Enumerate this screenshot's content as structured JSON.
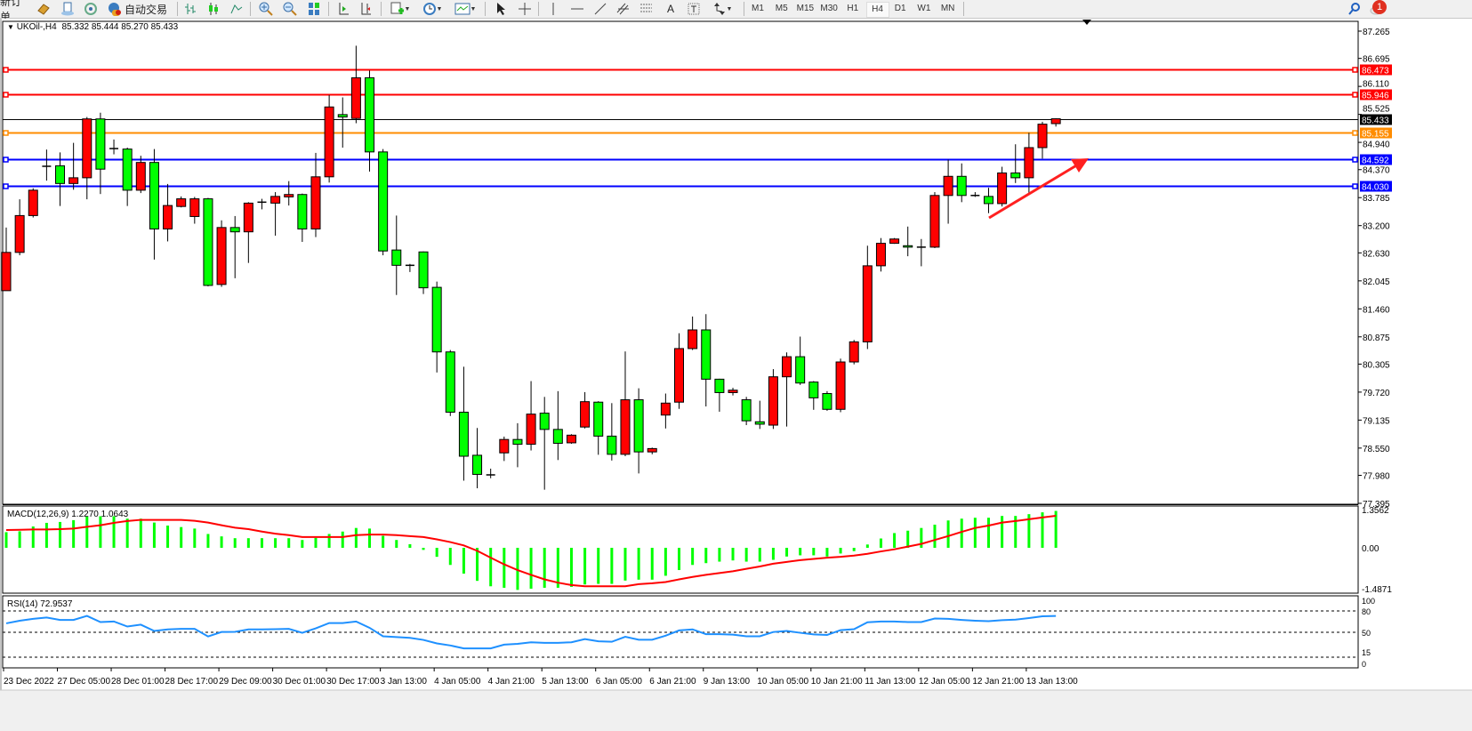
{
  "toolbar": {
    "new_order_label": "新订单",
    "auto_trading_label": "自动交易",
    "icons": [
      "book-icon",
      "market-watch-icon",
      "signals-icon",
      "robot-icon",
      "bar-chart-icon",
      "candlestick-icon",
      "line-chart-icon",
      "zoom-in-icon",
      "zoom-out-icon",
      "tile-windows-icon",
      "auto-scroll-icon",
      "chart-shift-icon",
      "new-chart-icon",
      "clock-icon",
      "template-icon",
      "cursor-icon",
      "crosshair-icon",
      "vertical-line-icon",
      "horizontal-line-icon",
      "trendline-icon",
      "fibonacci-icon",
      "channel-icon",
      "text-icon",
      "text-label-icon",
      "arrows-icon",
      "search-icon",
      "notification-icon"
    ],
    "timeframes": [
      "M1",
      "M5",
      "M15",
      "M30",
      "H1",
      "H4",
      "D1",
      "W1",
      "MN"
    ],
    "selected_timeframe": "H4",
    "notification_count": "1"
  },
  "header": {
    "symbol": "UKOil-,H4",
    "ohlc": "85.332 85.444 85.270 85.433"
  },
  "colors": {
    "up_candle": "#ff0000",
    "down_candle": "#00ff00",
    "resistance": "#ff0000",
    "bid": "#000000",
    "pivot": "#ff8c00",
    "support": "#0000ff",
    "macd_hist": "#00ff00",
    "macd_signal": "#ff0000",
    "rsi": "#1e90ff",
    "arrow": "#ff2020"
  },
  "chart_data": [
    {
      "type": "candlestick",
      "symbol": "UKOil-",
      "timeframe": "H4",
      "ylim": [
        77.395,
        87.265
      ],
      "y_ticks": [
        "87.265",
        "86.695",
        "86.110",
        "85.525",
        "84.940",
        "84.370",
        "83.785",
        "83.200",
        "82.630",
        "82.045",
        "81.460",
        "80.875",
        "80.305",
        "79.720",
        "79.135",
        "78.550",
        "77.980",
        "77.395"
      ],
      "x_ticks": [
        "23 Dec 2022",
        "27 Dec 05:00",
        "28 Dec 01:00",
        "28 Dec 17:00",
        "29 Dec 09:00",
        "30 Dec 01:00",
        "30 Dec 17:00",
        "3 Jan 13:00",
        "4 Jan 05:00",
        "4 Jan 21:00",
        "5 Jan 13:00",
        "6 Jan 05:00",
        "6 Jan 21:00",
        "9 Jan 13:00",
        "10 Jan 05:00",
        "10 Jan 21:00",
        "11 Jan 13:00",
        "12 Jan 05:00",
        "12 Jan 21:00",
        "13 Jan 13:00"
      ],
      "x_tick_every": 4,
      "ohlc_fields": [
        "open",
        "high",
        "low",
        "close"
      ],
      "candles": [
        [
          81.84,
          83.16,
          81.84,
          82.64
        ],
        [
          82.64,
          83.75,
          82.58,
          83.41
        ],
        [
          83.41,
          83.98,
          83.37,
          83.94
        ],
        [
          84.44,
          84.79,
          84.14,
          84.44
        ],
        [
          84.45,
          84.73,
          83.61,
          84.08
        ],
        [
          84.08,
          84.93,
          83.95,
          84.2
        ],
        [
          84.2,
          85.47,
          83.75,
          85.43
        ],
        [
          85.43,
          85.56,
          83.86,
          84.38
        ],
        [
          84.81,
          85.0,
          84.69,
          84.81
        ],
        [
          84.8,
          84.83,
          83.61,
          83.94
        ],
        [
          83.94,
          84.66,
          83.88,
          84.52
        ],
        [
          84.52,
          84.8,
          82.49,
          83.13
        ],
        [
          83.13,
          84.07,
          82.87,
          83.62
        ],
        [
          83.6,
          83.81,
          83.58,
          83.76
        ],
        [
          83.39,
          83.8,
          83.24,
          83.76
        ],
        [
          83.76,
          83.78,
          81.93,
          81.95
        ],
        [
          81.97,
          83.31,
          81.92,
          83.16
        ],
        [
          83.16,
          83.4,
          82.1,
          83.07
        ],
        [
          83.07,
          83.69,
          82.42,
          83.67
        ],
        [
          83.69,
          83.76,
          83.54,
          83.69
        ],
        [
          83.67,
          83.9,
          82.99,
          83.81
        ],
        [
          83.8,
          84.13,
          83.62,
          83.85
        ],
        [
          83.85,
          83.87,
          82.86,
          83.13
        ],
        [
          83.13,
          84.72,
          82.96,
          84.22
        ],
        [
          84.22,
          85.93,
          84.1,
          85.68
        ],
        [
          85.52,
          85.88,
          84.83,
          85.47
        ],
        [
          85.44,
          86.96,
          85.34,
          86.29
        ],
        [
          86.29,
          86.44,
          84.33,
          84.74
        ],
        [
          84.74,
          84.8,
          82.58,
          82.67
        ],
        [
          82.69,
          83.41,
          81.75,
          82.37
        ],
        [
          82.37,
          82.4,
          82.23,
          82.37
        ],
        [
          82.65,
          82.66,
          81.77,
          81.9
        ],
        [
          81.91,
          82.03,
          80.13,
          80.56
        ],
        [
          80.56,
          80.6,
          79.22,
          79.3
        ],
        [
          79.3,
          80.25,
          77.87,
          78.38
        ],
        [
          78.4,
          78.97,
          77.71,
          78.0
        ],
        [
          77.99,
          78.12,
          77.92,
          77.99
        ],
        [
          78.45,
          78.79,
          78.28,
          78.73
        ],
        [
          78.73,
          79.07,
          78.15,
          78.63
        ],
        [
          78.63,
          79.95,
          78.5,
          79.26
        ],
        [
          79.28,
          79.62,
          77.68,
          78.94
        ],
        [
          78.94,
          79.74,
          78.3,
          78.65
        ],
        [
          78.66,
          78.84,
          78.64,
          78.82
        ],
        [
          78.99,
          79.72,
          78.96,
          79.52
        ],
        [
          79.51,
          79.53,
          78.41,
          78.8
        ],
        [
          78.8,
          79.49,
          78.29,
          78.42
        ],
        [
          78.42,
          80.57,
          78.38,
          79.56
        ],
        [
          79.56,
          79.8,
          78.02,
          78.47
        ],
        [
          78.47,
          78.56,
          78.42,
          78.54
        ],
        [
          79.24,
          79.69,
          78.96,
          79.49
        ],
        [
          79.51,
          80.95,
          79.37,
          80.63
        ],
        [
          80.63,
          81.3,
          80.6,
          81.02
        ],
        [
          81.02,
          81.35,
          79.42,
          79.99
        ],
        [
          79.99,
          80.0,
          79.31,
          79.71
        ],
        [
          79.71,
          79.81,
          79.65,
          79.76
        ],
        [
          79.56,
          79.62,
          79.03,
          79.12
        ],
        [
          79.1,
          79.54,
          78.95,
          79.05
        ],
        [
          79.03,
          80.2,
          78.95,
          80.04
        ],
        [
          80.04,
          80.55,
          79.0,
          80.46
        ],
        [
          80.46,
          80.88,
          79.87,
          79.91
        ],
        [
          79.93,
          79.95,
          79.35,
          79.6
        ],
        [
          79.69,
          79.74,
          79.33,
          79.36
        ],
        [
          79.36,
          80.42,
          79.3,
          80.35
        ],
        [
          80.35,
          80.81,
          80.3,
          80.77
        ],
        [
          80.77,
          82.78,
          80.62,
          82.36
        ],
        [
          82.36,
          82.94,
          82.24,
          82.83
        ],
        [
          82.83,
          82.94,
          82.82,
          82.92
        ],
        [
          82.78,
          83.18,
          82.56,
          82.75
        ],
        [
          82.75,
          82.92,
          82.35,
          82.75
        ],
        [
          82.75,
          83.9,
          82.73,
          83.83
        ],
        [
          83.83,
          84.58,
          83.24,
          84.23
        ],
        [
          84.23,
          84.5,
          83.69,
          83.83
        ],
        [
          83.83,
          83.9,
          83.8,
          83.83
        ],
        [
          83.81,
          83.99,
          83.46,
          83.66
        ],
        [
          83.66,
          84.43,
          83.6,
          84.3
        ],
        [
          84.3,
          84.9,
          84.09,
          84.2
        ],
        [
          84.2,
          85.14,
          83.88,
          84.83
        ],
        [
          84.83,
          85.37,
          84.6,
          85.32
        ],
        [
          85.332,
          85.444,
          85.27,
          85.433
        ]
      ],
      "horizontal_lines": [
        {
          "price": "86.473",
          "role": "resistance"
        },
        {
          "price": "85.946",
          "role": "resistance"
        },
        {
          "price": "85.433",
          "role": "bid"
        },
        {
          "price": "85.155",
          "role": "pivot"
        },
        {
          "price": "84.592",
          "role": "support"
        },
        {
          "price": "84.030",
          "role": "support"
        }
      ],
      "grid": false
    },
    {
      "type": "bar",
      "title": "MACD(12,26,9) 1.2270 1.0643",
      "ylim": [
        -1.4871,
        1.3562
      ],
      "y_ticks": [
        "1.3562",
        "0.00",
        "-1.4871"
      ],
      "histogram": [
        0.52,
        0.55,
        0.71,
        0.83,
        0.86,
        0.92,
        1.05,
        1.05,
        1.05,
        0.97,
        0.97,
        0.84,
        0.74,
        0.69,
        0.64,
        0.46,
        0.38,
        0.32,
        0.32,
        0.32,
        0.32,
        0.32,
        0.26,
        0.33,
        0.46,
        0.54,
        0.66,
        0.64,
        0.4,
        0.26,
        0.12,
        -0.07,
        -0.3,
        -0.57,
        -0.86,
        -1.1,
        -1.28,
        -1.33,
        -1.4,
        -1.36,
        -1.33,
        -1.33,
        -1.3,
        -1.22,
        -1.2,
        -1.2,
        -1.09,
        -1.06,
        -1.06,
        -0.93,
        -0.74,
        -0.57,
        -0.51,
        -0.46,
        -0.42,
        -0.46,
        -0.46,
        -0.4,
        -0.29,
        -0.25,
        -0.25,
        -0.29,
        -0.19,
        -0.11,
        0.11,
        0.31,
        0.49,
        0.57,
        0.66,
        0.77,
        0.91,
        0.97,
        1.0,
        1.0,
        1.06,
        1.06,
        1.12,
        1.18,
        1.227
      ],
      "signal": [
        0.59,
        0.6,
        0.61,
        0.61,
        0.62,
        0.64,
        0.7,
        0.75,
        0.83,
        0.89,
        0.93,
        0.93,
        0.93,
        0.93,
        0.9,
        0.84,
        0.75,
        0.67,
        0.62,
        0.54,
        0.47,
        0.42,
        0.36,
        0.36,
        0.36,
        0.36,
        0.42,
        0.44,
        0.44,
        0.42,
        0.39,
        0.36,
        0.28,
        0.19,
        0.08,
        -0.1,
        -0.33,
        -0.55,
        -0.74,
        -0.9,
        -1.05,
        -1.16,
        -1.24,
        -1.28,
        -1.28,
        -1.28,
        -1.28,
        -1.21,
        -1.18,
        -1.14,
        -1.05,
        -0.97,
        -0.9,
        -0.84,
        -0.78,
        -0.7,
        -0.62,
        -0.53,
        -0.47,
        -0.41,
        -0.37,
        -0.33,
        -0.3,
        -0.26,
        -0.2,
        -0.12,
        -0.05,
        0.04,
        0.13,
        0.26,
        0.39,
        0.53,
        0.66,
        0.74,
        0.84,
        0.89,
        0.95,
        1.01,
        1.0643
      ]
    },
    {
      "type": "line",
      "title": "RSI(14) 72.9537",
      "ylim": [
        0,
        100
      ],
      "y_ticks": [
        "100",
        "80",
        "50",
        "15",
        "0"
      ],
      "levels": [
        80,
        50,
        15
      ],
      "values": [
        62.6,
        66.3,
        68.9,
        70.7,
        67.4,
        67.4,
        73.0,
        64.4,
        65.2,
        58.1,
        60.7,
        51.9,
        54.1,
        54.8,
        54.8,
        44.1,
        50.4,
        50.7,
        54.1,
        54.1,
        54.4,
        54.8,
        49.3,
        55.6,
        63.0,
        63.0,
        65.2,
        56.3,
        44.4,
        43.3,
        42.2,
        39.3,
        34.4,
        31.5,
        27.4,
        27.4,
        27.4,
        32.6,
        33.7,
        35.9,
        35.2,
        35.2,
        35.9,
        40.4,
        37.4,
        36.7,
        43.7,
        39.6,
        39.6,
        45.2,
        52.6,
        54.1,
        47.4,
        47.4,
        46.7,
        44.4,
        44.4,
        50.4,
        51.9,
        49.3,
        47.0,
        46.3,
        53.0,
        54.4,
        64.1,
        65.2,
        65.2,
        64.4,
        64.4,
        69.3,
        68.9,
        67.4,
        66.3,
        65.6,
        67.0,
        67.8,
        70.0,
        72.5,
        72.95
      ]
    }
  ]
}
